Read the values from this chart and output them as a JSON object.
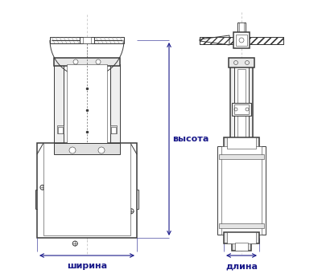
{
  "bg_color": "#ffffff",
  "line_color": "#3a3a3a",
  "dim_color": "#1a1a8a",
  "label_fontsize": 8.0,
  "fig_width": 4.0,
  "fig_height": 3.46,
  "dpi": 100,
  "labels": {
    "width": "ширина",
    "height": "высота",
    "length": "длина"
  }
}
